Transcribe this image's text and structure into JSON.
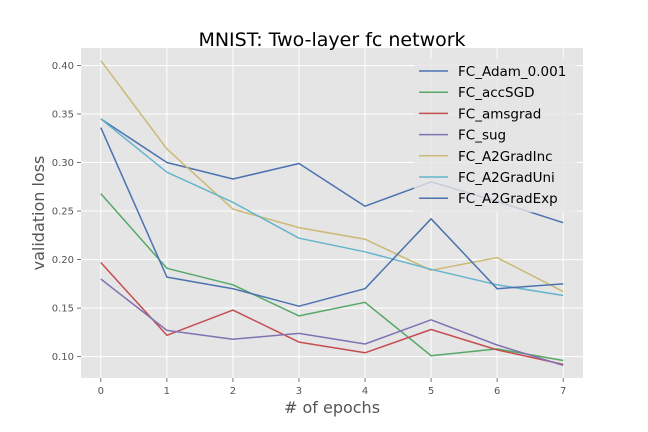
{
  "chart_data": {
    "type": "line",
    "title": "MNIST: Two-layer fc network",
    "xlabel": "# of epochs",
    "ylabel": "validation loss",
    "x": [
      0,
      1,
      2,
      3,
      4,
      5,
      6,
      7
    ],
    "xlim": [
      -0.3,
      7.3
    ],
    "ylim": [
      0.078,
      0.418
    ],
    "xticks": [
      0,
      1,
      2,
      3,
      4,
      5,
      6,
      7
    ],
    "yticks": [
      0.1,
      0.15,
      0.2,
      0.25,
      0.3,
      0.35,
      0.4
    ],
    "ytick_labels": [
      "0.10",
      "0.15",
      "0.20",
      "0.25",
      "0.30",
      "0.35",
      "0.40"
    ],
    "grid": true,
    "legend_position": "top-right",
    "series": [
      {
        "name": "FC_Adam_0.001",
        "color": "#4c72b0",
        "values": [
          0.345,
          0.3,
          0.283,
          0.299,
          0.255,
          0.28,
          0.26,
          0.238
        ]
      },
      {
        "name": "FC_accSGD",
        "color": "#55a868",
        "values": [
          0.268,
          0.191,
          0.174,
          0.142,
          0.156,
          0.101,
          0.108,
          0.096
        ]
      },
      {
        "name": "FC_amsgrad",
        "color": "#c44e52",
        "values": [
          0.197,
          0.122,
          0.148,
          0.115,
          0.104,
          0.128,
          0.107,
          0.092
        ]
      },
      {
        "name": "FC_sug",
        "color": "#8172b2",
        "values": [
          0.18,
          0.127,
          0.118,
          0.124,
          0.113,
          0.138,
          0.112,
          0.091
        ]
      },
      {
        "name": "FC_A2GradInc",
        "color": "#ccb974",
        "values": [
          0.405,
          0.314,
          0.252,
          0.233,
          0.221,
          0.189,
          0.202,
          0.167
        ]
      },
      {
        "name": "FC_A2GradUni",
        "color": "#64b5cd",
        "values": [
          0.345,
          0.29,
          0.259,
          0.222,
          0.208,
          0.19,
          0.174,
          0.163
        ]
      },
      {
        "name": "FC_A2GradExp",
        "color": "#4c72b0",
        "values": [
          0.336,
          0.182,
          0.17,
          0.152,
          0.17,
          0.242,
          0.17,
          0.175
        ]
      }
    ]
  }
}
